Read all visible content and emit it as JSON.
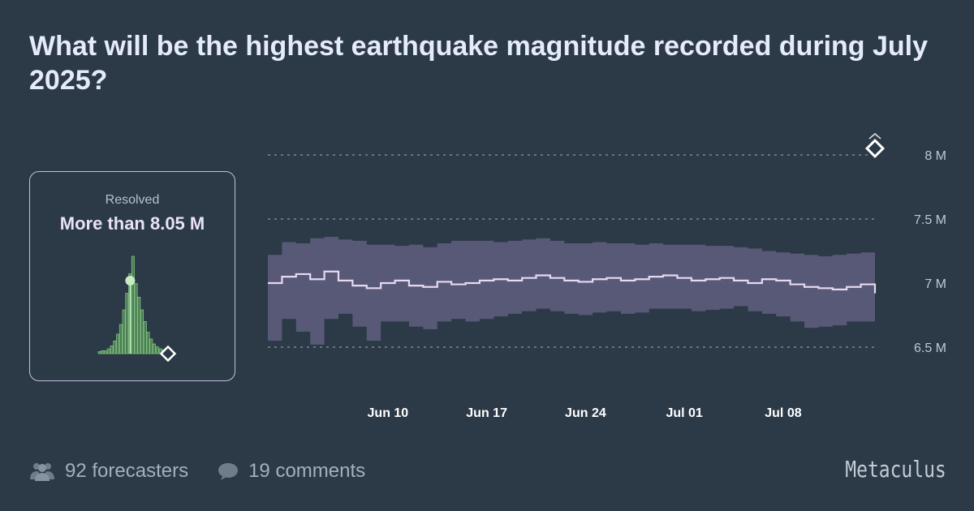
{
  "header": {
    "title": "What will be the highest earthquake magnitude recorded during July 2025?"
  },
  "resolution": {
    "label": "Resolved",
    "value": "More than 8.05 M"
  },
  "footer": {
    "forecasters": "92 forecasters",
    "comments": "19 comments",
    "brand": "Metaculus"
  },
  "colors": {
    "background": "#2c3947",
    "band": "#5a5b79",
    "median_line": "#e8d8f0",
    "histogram": "#7ec47e",
    "resolved_marker": "#ffffff"
  },
  "icons": {
    "forecasters": "people-icon",
    "comments": "comment-bubble-icon",
    "resolved_marker": "diamond-icon"
  },
  "chart_data": {
    "type": "area",
    "x_ticks": [
      "Jun 10",
      "Jun 17",
      "Jun 24",
      "Jul 01",
      "Jul 08"
    ],
    "x_tick_days": [
      9,
      16,
      23,
      30,
      37
    ],
    "x_range_days": [
      0.5,
      43.5
    ],
    "y_ticks": [
      "6.5 M",
      "7 M",
      "7.5 M",
      "8 M"
    ],
    "y_tick_values": [
      6.5,
      7.0,
      7.5,
      8.0
    ],
    "ylim": [
      6.45,
      8.15
    ],
    "series": [
      {
        "x": [
          0.5,
          1.5,
          2.5,
          3.5,
          4.5,
          5.5,
          6.5,
          7.5,
          8.5,
          9.5,
          10.5,
          11.5,
          12.5,
          13.5,
          14.5,
          15.5,
          16.5,
          17.5,
          18.5,
          19.5,
          20.5,
          21.5,
          22.5,
          23.5,
          24.5,
          25.5,
          26.5,
          27.5,
          28.5,
          29.5,
          30.5,
          31.5,
          32.5,
          33.5,
          34.5,
          35.5,
          36.5,
          37.5,
          38.5,
          39.5,
          40.5,
          41.5,
          42.5,
          43.5
        ],
        "median": [
          7.0,
          7.05,
          7.07,
          7.03,
          7.09,
          7.02,
          6.98,
          6.96,
          7.0,
          7.02,
          6.98,
          6.97,
          7.01,
          6.99,
          7.0,
          7.02,
          7.03,
          7.02,
          7.04,
          7.06,
          7.04,
          7.02,
          7.01,
          7.03,
          7.04,
          7.02,
          7.03,
          7.05,
          7.06,
          7.04,
          7.02,
          7.03,
          7.04,
          7.02,
          7.0,
          7.03,
          7.02,
          6.99,
          6.97,
          6.96,
          6.95,
          6.97,
          6.99,
          6.92
        ],
        "lower": [
          6.55,
          6.72,
          6.62,
          6.52,
          6.72,
          6.76,
          6.66,
          6.55,
          6.7,
          6.7,
          6.66,
          6.64,
          6.7,
          6.72,
          6.7,
          6.72,
          6.74,
          6.76,
          6.78,
          6.8,
          6.78,
          6.76,
          6.75,
          6.77,
          6.78,
          6.76,
          6.77,
          6.8,
          6.8,
          6.8,
          6.78,
          6.79,
          6.8,
          6.82,
          6.78,
          6.76,
          6.74,
          6.7,
          6.65,
          6.66,
          6.67,
          6.7,
          6.7,
          6.72
        ],
        "upper": [
          7.22,
          7.32,
          7.31,
          7.35,
          7.36,
          7.34,
          7.33,
          7.3,
          7.3,
          7.29,
          7.3,
          7.28,
          7.31,
          7.33,
          7.33,
          7.33,
          7.32,
          7.33,
          7.34,
          7.35,
          7.33,
          7.31,
          7.31,
          7.32,
          7.31,
          7.31,
          7.3,
          7.31,
          7.3,
          7.3,
          7.3,
          7.29,
          7.29,
          7.28,
          7.27,
          7.25,
          7.24,
          7.23,
          7.22,
          7.21,
          7.22,
          7.23,
          7.24,
          7.2
        ]
      }
    ],
    "resolution_marker": {
      "x_day": 43.5,
      "y": 8.05
    }
  },
  "histogram_data": {
    "type": "bar",
    "values": [
      0.02,
      0.03,
      0.03,
      0.05,
      0.08,
      0.13,
      0.2,
      0.3,
      0.45,
      0.62,
      0.82,
      1.0,
      0.72,
      0.58,
      0.45,
      0.33,
      0.22,
      0.15,
      0.1,
      0.07,
      0.05,
      0.04,
      0.03,
      0.02
    ],
    "median_index": 10,
    "median_height": 0.75
  }
}
